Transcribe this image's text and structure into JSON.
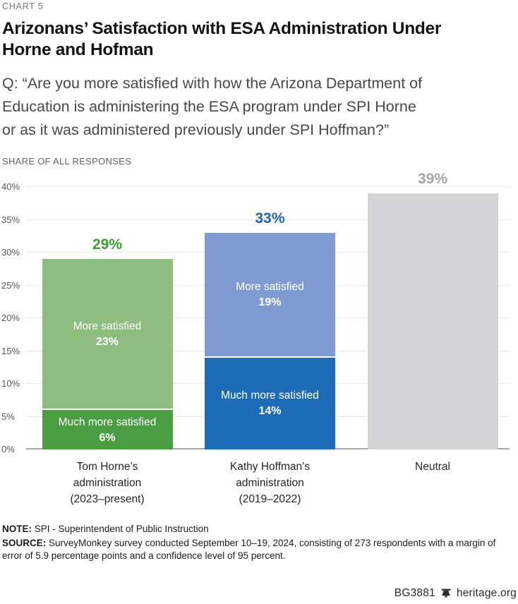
{
  "header": {
    "kicker": "CHART 5",
    "title_lines": [
      "Arizonans’ Satisfaction with ESA Administration Under",
      "Horne and Hofman"
    ],
    "question_lines": [
      "Q: “Are you more satisfied with how the Arizona Department of",
      "Education is administering the ESA program under SPI Horne",
      "or as it was administered previously under SPI Hoffman?”"
    ],
    "axis_caption": "SHARE OF ALL RESPONSES"
  },
  "chart_data": {
    "type": "bar",
    "stacked": true,
    "ylim": [
      0,
      40
    ],
    "ytick_step": 5,
    "ytick_suffix": "%",
    "grid": true,
    "bars": [
      {
        "category": [
          "Tom Horne’s",
          "administration",
          "(2023–present)"
        ],
        "total": 29,
        "total_label": "29%",
        "label_color": "#3e9b35",
        "segments": [
          {
            "name": "Much more satisfied",
            "value": 6,
            "value_label": "6%",
            "color": "#4a9d42"
          },
          {
            "name": "More satisfied",
            "value": 23,
            "value_label": "23%",
            "color": "#8fbc7f"
          }
        ]
      },
      {
        "category": [
          "Kathy Hoffman’s",
          "administration",
          "(2019–2022)"
        ],
        "total": 33,
        "total_label": "33%",
        "label_color": "#1d64af",
        "segments": [
          {
            "name": "Much more satisfied",
            "value": 14,
            "value_label": "14%",
            "color": "#1c6cb8"
          },
          {
            "name": "More satisfied",
            "value": 19,
            "value_label": "19%",
            "color": "#7f9bd1"
          }
        ]
      },
      {
        "category": [
          "Neutral"
        ],
        "total": 39,
        "total_label": "39%",
        "label_color": "#a3a4a6",
        "segments": [
          {
            "name": "",
            "value": 39,
            "value_label": "",
            "color": "#d4d4d6"
          }
        ]
      }
    ]
  },
  "footnotes": {
    "note_label": "NOTE:",
    "note": "SPI - Superintendent of Public Instruction",
    "source_label": "SOURCE:",
    "source": "SurveyMonkey survey conducted September 10–19, 2024, consisting of 273 respondents with a margin of error of 5.9 percentage points and a confidence level of 95 percent."
  },
  "footer": {
    "report_id": "BG3881",
    "site": "heritage.org",
    "bell_icon_color": "#2a2a2c"
  }
}
